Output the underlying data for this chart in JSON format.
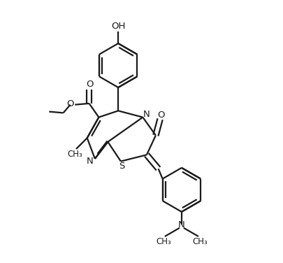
{
  "background": "#ffffff",
  "line_color": "#1a1a1a",
  "line_width": 1.6,
  "fig_width": 4.05,
  "fig_height": 3.76,
  "dpi": 100,
  "xlim": [
    0,
    10
  ],
  "ylim": [
    0,
    10
  ]
}
